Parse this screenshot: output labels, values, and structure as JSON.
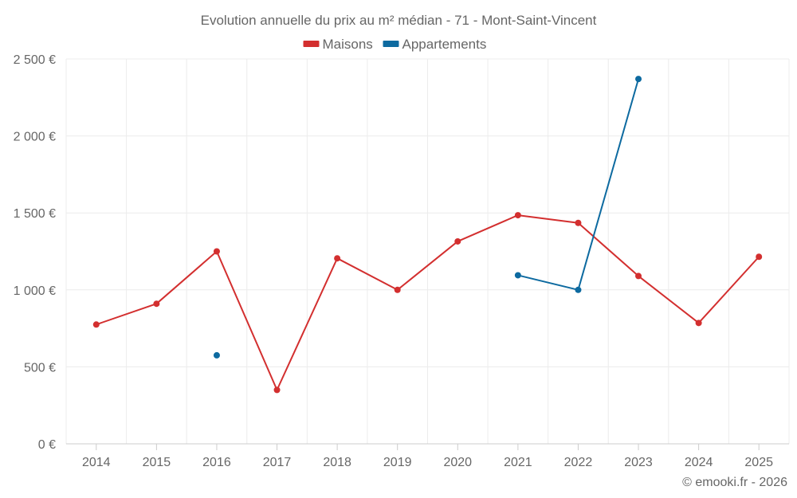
{
  "chart_data": {
    "type": "line",
    "title": "Evolution annuelle du prix au m² médian - 71 - Mont-Saint-Vincent",
    "categories": [
      "2014",
      "2015",
      "2016",
      "2017",
      "2018",
      "2019",
      "2020",
      "2021",
      "2022",
      "2023",
      "2024",
      "2025"
    ],
    "series": [
      {
        "name": "Maisons",
        "color": "#d32f2f",
        "values": [
          775,
          910,
          1250,
          350,
          1205,
          1000,
          1315,
          1485,
          1435,
          1090,
          785,
          1215
        ]
      },
      {
        "name": "Appartements",
        "color": "#0d6aa0",
        "values": [
          null,
          null,
          575,
          null,
          null,
          null,
          null,
          1095,
          1000,
          2370,
          null,
          null
        ]
      }
    ],
    "ylim": [
      0,
      2500
    ],
    "yticks": [
      0,
      500,
      1000,
      1500,
      2000,
      2500
    ],
    "ytick_labels": [
      "0 €",
      "500 €",
      "1 000 €",
      "1 500 €",
      "2 000 €",
      "2 500 €"
    ],
    "xlabel": "",
    "ylabel": "",
    "legend_position": "top-center",
    "grid": true
  },
  "credit": "© emooki.fr - 2026"
}
